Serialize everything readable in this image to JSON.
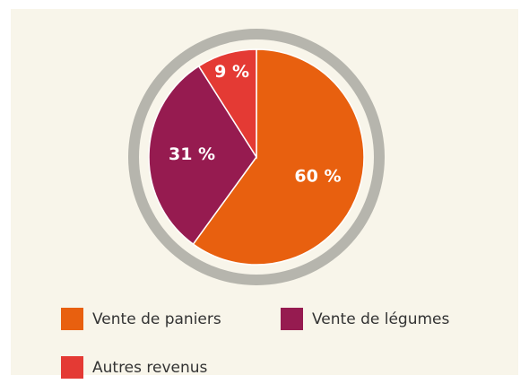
{
  "chart_data": {
    "type": "pie",
    "categories": [
      "Vente de paniers",
      "Vente de légumes",
      "Autres revenus"
    ],
    "values": [
      60,
      31,
      9
    ],
    "value_labels": [
      "60 %",
      "31 %",
      "9 %"
    ],
    "colors": [
      "#e8600f",
      "#961b50",
      "#e43a34"
    ]
  }
}
